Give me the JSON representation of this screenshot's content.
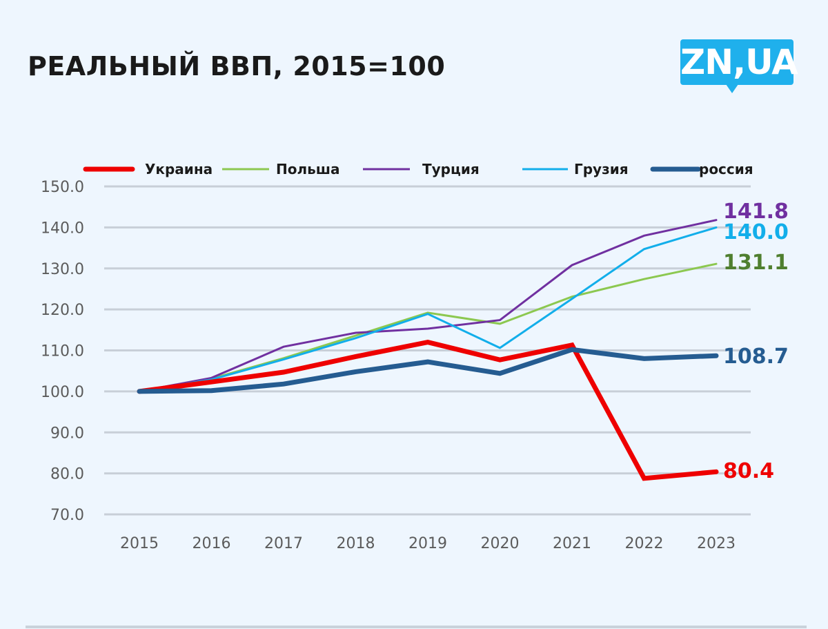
{
  "header": {
    "title": "РЕАЛЬНЫЙ ВВП, 2015=100",
    "logo_text": "ZN,UA"
  },
  "colors": {
    "background": "#eef6fe",
    "grid": "#c8cfd8",
    "logo": "#1fb0ec"
  },
  "chart_data": {
    "type": "line",
    "title": "РЕАЛЬНЫЙ ВВП, 2015=100",
    "xlabel": "",
    "ylabel": "",
    "x": [
      "2015",
      "2016",
      "2017",
      "2018",
      "2019",
      "2020",
      "2021",
      "2022",
      "2023"
    ],
    "ylim": [
      70,
      150
    ],
    "yticks": [
      "150.0",
      "140.0",
      "130.0",
      "120.0",
      "110.0",
      "100.0",
      "90.0",
      "80.0",
      "70.0"
    ],
    "ytick_values": [
      150,
      140,
      130,
      120,
      110,
      100,
      90,
      80,
      70
    ],
    "grid": true,
    "legend_position": "top",
    "series": [
      {
        "name": "Украина",
        "color": "#ee0000",
        "weight": "thick",
        "label_color": "#ee0000",
        "end_label": "80.4",
        "values": [
          100,
          102.3,
          104.7,
          108.5,
          112.0,
          107.7,
          111.3,
          78.8,
          80.4
        ]
      },
      {
        "name": "Польша",
        "color": "#8cc850",
        "weight": "thin",
        "label_color": "#4f7f2f",
        "end_label": "131.1",
        "values": [
          100,
          103.1,
          108.1,
          113.6,
          119.2,
          116.5,
          123.1,
          127.4,
          131.1
        ]
      },
      {
        "name": "Турция",
        "color": "#7030a0",
        "weight": "thin",
        "label_color": "#7030a0",
        "end_label": "141.8",
        "values": [
          100,
          103.3,
          110.9,
          114.3,
          115.3,
          117.4,
          130.8,
          138.0,
          141.8
        ]
      },
      {
        "name": "Грузия",
        "color": "#12aeea",
        "weight": "thin",
        "label_color": "#12aeea",
        "end_label": "140.0",
        "values": [
          100,
          102.9,
          107.8,
          113.0,
          118.9,
          110.6,
          122.6,
          134.7,
          140.0
        ]
      },
      {
        "name": "россия",
        "color": "#255c91",
        "weight": "thick",
        "label_color": "#255c91",
        "end_label": "108.7",
        "values": [
          100,
          100.2,
          101.8,
          104.8,
          107.2,
          104.4,
          110.2,
          108.0,
          108.7
        ]
      }
    ]
  }
}
